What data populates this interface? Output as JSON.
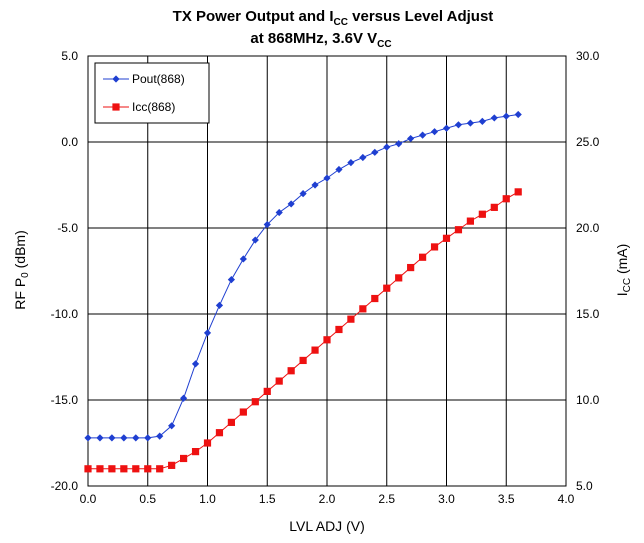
{
  "chart_data": {
    "type": "line",
    "title_line1_main": "TX Power Output and I",
    "title_line1_sub": "CC",
    "title_line1_tail": " versus Level Adjust",
    "title_line2_main": "at 868MHz, 3.6V V",
    "title_line2_sub": "CC",
    "xlabel": "LVL ADJ (V)",
    "ylabel_left_pre": "RF P",
    "ylabel_left_sub": "0",
    "ylabel_left_post": " (dBm)",
    "ylabel_right_pre": "I",
    "ylabel_right_sub": "CC",
    "ylabel_right_post": " (mA)",
    "xlim": [
      0,
      4
    ],
    "ylim_left": [
      -20,
      5
    ],
    "ylim_right": [
      5,
      30
    ],
    "x_ticks": [
      "0.0",
      "0.5",
      "1.0",
      "1.5",
      "2.0",
      "2.5",
      "3.0",
      "3.5",
      "4.0"
    ],
    "y_left_ticks": [
      "5.0",
      "0.0",
      "-5.0",
      "-10.0",
      "-15.0",
      "-20.0"
    ],
    "y_right_ticks": [
      "30.0",
      "25.0",
      "20.0",
      "15.0",
      "10.0",
      "5.0"
    ],
    "grid": true,
    "legend_placement": "top-left",
    "series": [
      {
        "name": "Pout(868)",
        "axis": "left",
        "color": "#1f3fd1",
        "marker": "diamond",
        "x": [
          0.0,
          0.1,
          0.2,
          0.3,
          0.4,
          0.5,
          0.6,
          0.7,
          0.8,
          0.9,
          1.0,
          1.1,
          1.2,
          1.3,
          1.4,
          1.5,
          1.6,
          1.7,
          1.8,
          1.9,
          2.0,
          2.1,
          2.2,
          2.3,
          2.4,
          2.5,
          2.6,
          2.7,
          2.8,
          2.9,
          3.0,
          3.1,
          3.2,
          3.3,
          3.4,
          3.5,
          3.6
        ],
        "values": [
          -17.2,
          -17.2,
          -17.2,
          -17.2,
          -17.2,
          -17.2,
          -17.1,
          -16.5,
          -14.9,
          -12.9,
          -11.1,
          -9.5,
          -8.0,
          -6.8,
          -5.7,
          -4.8,
          -4.1,
          -3.6,
          -3.0,
          -2.5,
          -2.1,
          -1.6,
          -1.2,
          -0.9,
          -0.6,
          -0.3,
          -0.1,
          0.2,
          0.4,
          0.6,
          0.8,
          1.0,
          1.1,
          1.2,
          1.4,
          1.5,
          1.6
        ]
      },
      {
        "name": "Icc(868)",
        "axis": "right",
        "color": "#ee1111",
        "marker": "square",
        "x": [
          0.0,
          0.1,
          0.2,
          0.3,
          0.4,
          0.5,
          0.6,
          0.7,
          0.8,
          0.9,
          1.0,
          1.1,
          1.2,
          1.3,
          1.4,
          1.5,
          1.6,
          1.7,
          1.8,
          1.9,
          2.0,
          2.1,
          2.2,
          2.3,
          2.4,
          2.5,
          2.6,
          2.7,
          2.8,
          2.9,
          3.0,
          3.1,
          3.2,
          3.3,
          3.4,
          3.5,
          3.6
        ],
        "values": [
          6.0,
          6.0,
          6.0,
          6.0,
          6.0,
          6.0,
          6.0,
          6.2,
          6.6,
          7.0,
          7.5,
          8.1,
          8.7,
          9.3,
          9.9,
          10.5,
          11.1,
          11.7,
          12.3,
          12.9,
          13.5,
          14.1,
          14.7,
          15.3,
          15.9,
          16.5,
          17.1,
          17.7,
          18.3,
          18.9,
          19.4,
          19.9,
          20.4,
          20.8,
          21.2,
          21.7,
          22.1
        ]
      }
    ]
  }
}
